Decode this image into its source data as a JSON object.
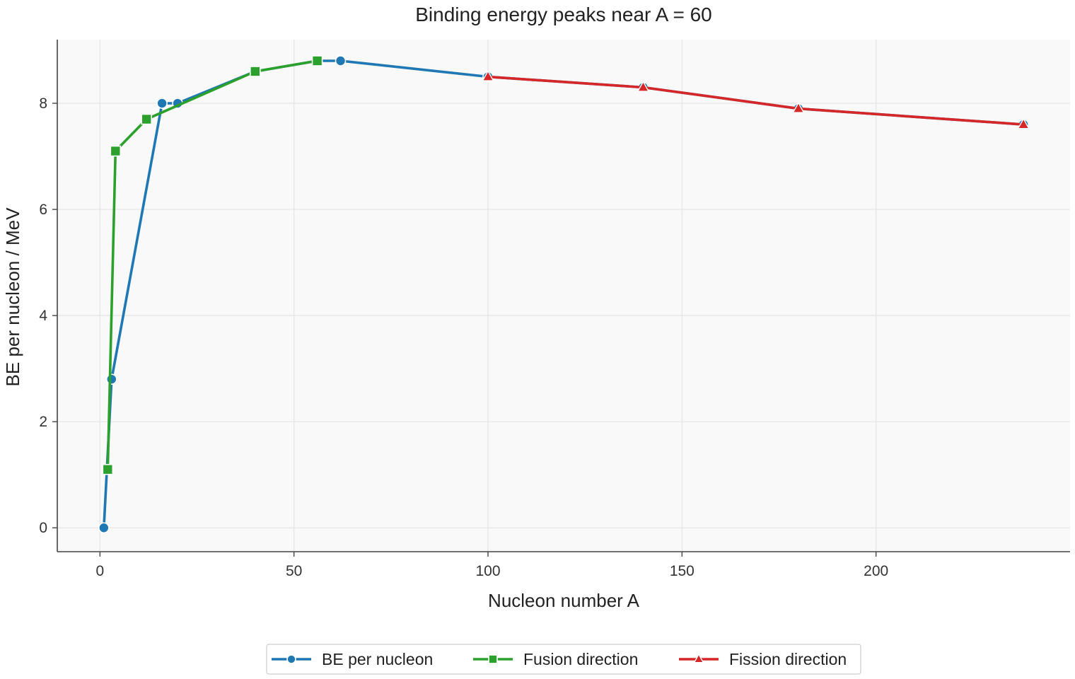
{
  "chart_data": {
    "type": "line",
    "title": "Binding energy peaks near A = 60",
    "xlabel": "Nucleon number A",
    "ylabel": "BE per nucleon / MeV",
    "xlim": [
      -11,
      250
    ],
    "ylim": [
      -0.45,
      9.2
    ],
    "xticks": [
      0,
      50,
      100,
      150,
      200
    ],
    "yticks": [
      0,
      2,
      4,
      6,
      8
    ],
    "grid": true,
    "legend_position": "bottom-center",
    "series": [
      {
        "name": "BE per nucleon",
        "color": "#1f77b4",
        "marker": "circle",
        "x": [
          1,
          3,
          16,
          20,
          40,
          56,
          62,
          100,
          140,
          180,
          238
        ],
        "y": [
          0.0,
          2.8,
          8.0,
          8.0,
          8.6,
          8.8,
          8.8,
          8.5,
          8.3,
          7.9,
          7.6
        ]
      },
      {
        "name": "Fusion direction",
        "color": "#2ca02c",
        "marker": "square",
        "x": [
          2,
          4,
          12,
          40,
          56
        ],
        "y": [
          1.1,
          7.1,
          7.7,
          8.6,
          8.8
        ]
      },
      {
        "name": "Fission direction",
        "color": "#d62728",
        "marker": "triangle",
        "x": [
          100,
          140,
          180,
          238
        ],
        "y": [
          8.5,
          8.3,
          7.9,
          7.6
        ]
      }
    ]
  }
}
